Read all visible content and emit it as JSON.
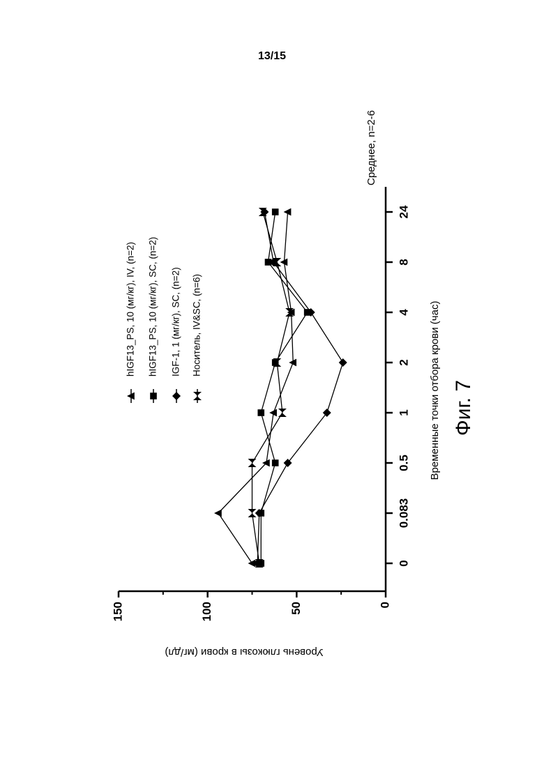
{
  "page": {
    "number": "13/15",
    "caption": "Фиг. 7"
  },
  "chart_data": {
    "type": "line",
    "title": "",
    "xlabel": "Временные точки отбора крови (час)",
    "ylabel": "Уровень глюкозы в крови (мг/дл)",
    "annotation": "Среднее, n=2-6",
    "categories": [
      "0",
      "0.083",
      "0.5",
      "1",
      "2",
      "4",
      "8",
      "24"
    ],
    "ylim": [
      0,
      150
    ],
    "yticks": [
      "0",
      "50",
      "100",
      "150"
    ],
    "legend_position": "top",
    "series": [
      {
        "name": "hIGF13_PS, 10 (мг/кг),   IV, (n=2)",
        "marker": "triangle-up",
        "values": [
          75,
          94,
          67,
          63,
          52,
          53,
          57,
          55
        ]
      },
      {
        "name": "hIGF13_PS, 10 (мг/кг),   SC, (n=2)",
        "marker": "square",
        "values": [
          70,
          70,
          62,
          70,
          62,
          44,
          66,
          62
        ]
      },
      {
        "name": "IGF-1, 1 (мг/кг),   SC, (n=2)",
        "marker": "diamond",
        "values": [
          72,
          71,
          55,
          33,
          24,
          42,
          63,
          68
        ]
      },
      {
        "name": "Носитель, IV&SC, (n=6)",
        "marker": "bowtie",
        "values": [
          71,
          75,
          75,
          58,
          61,
          54,
          61,
          69
        ]
      }
    ]
  }
}
